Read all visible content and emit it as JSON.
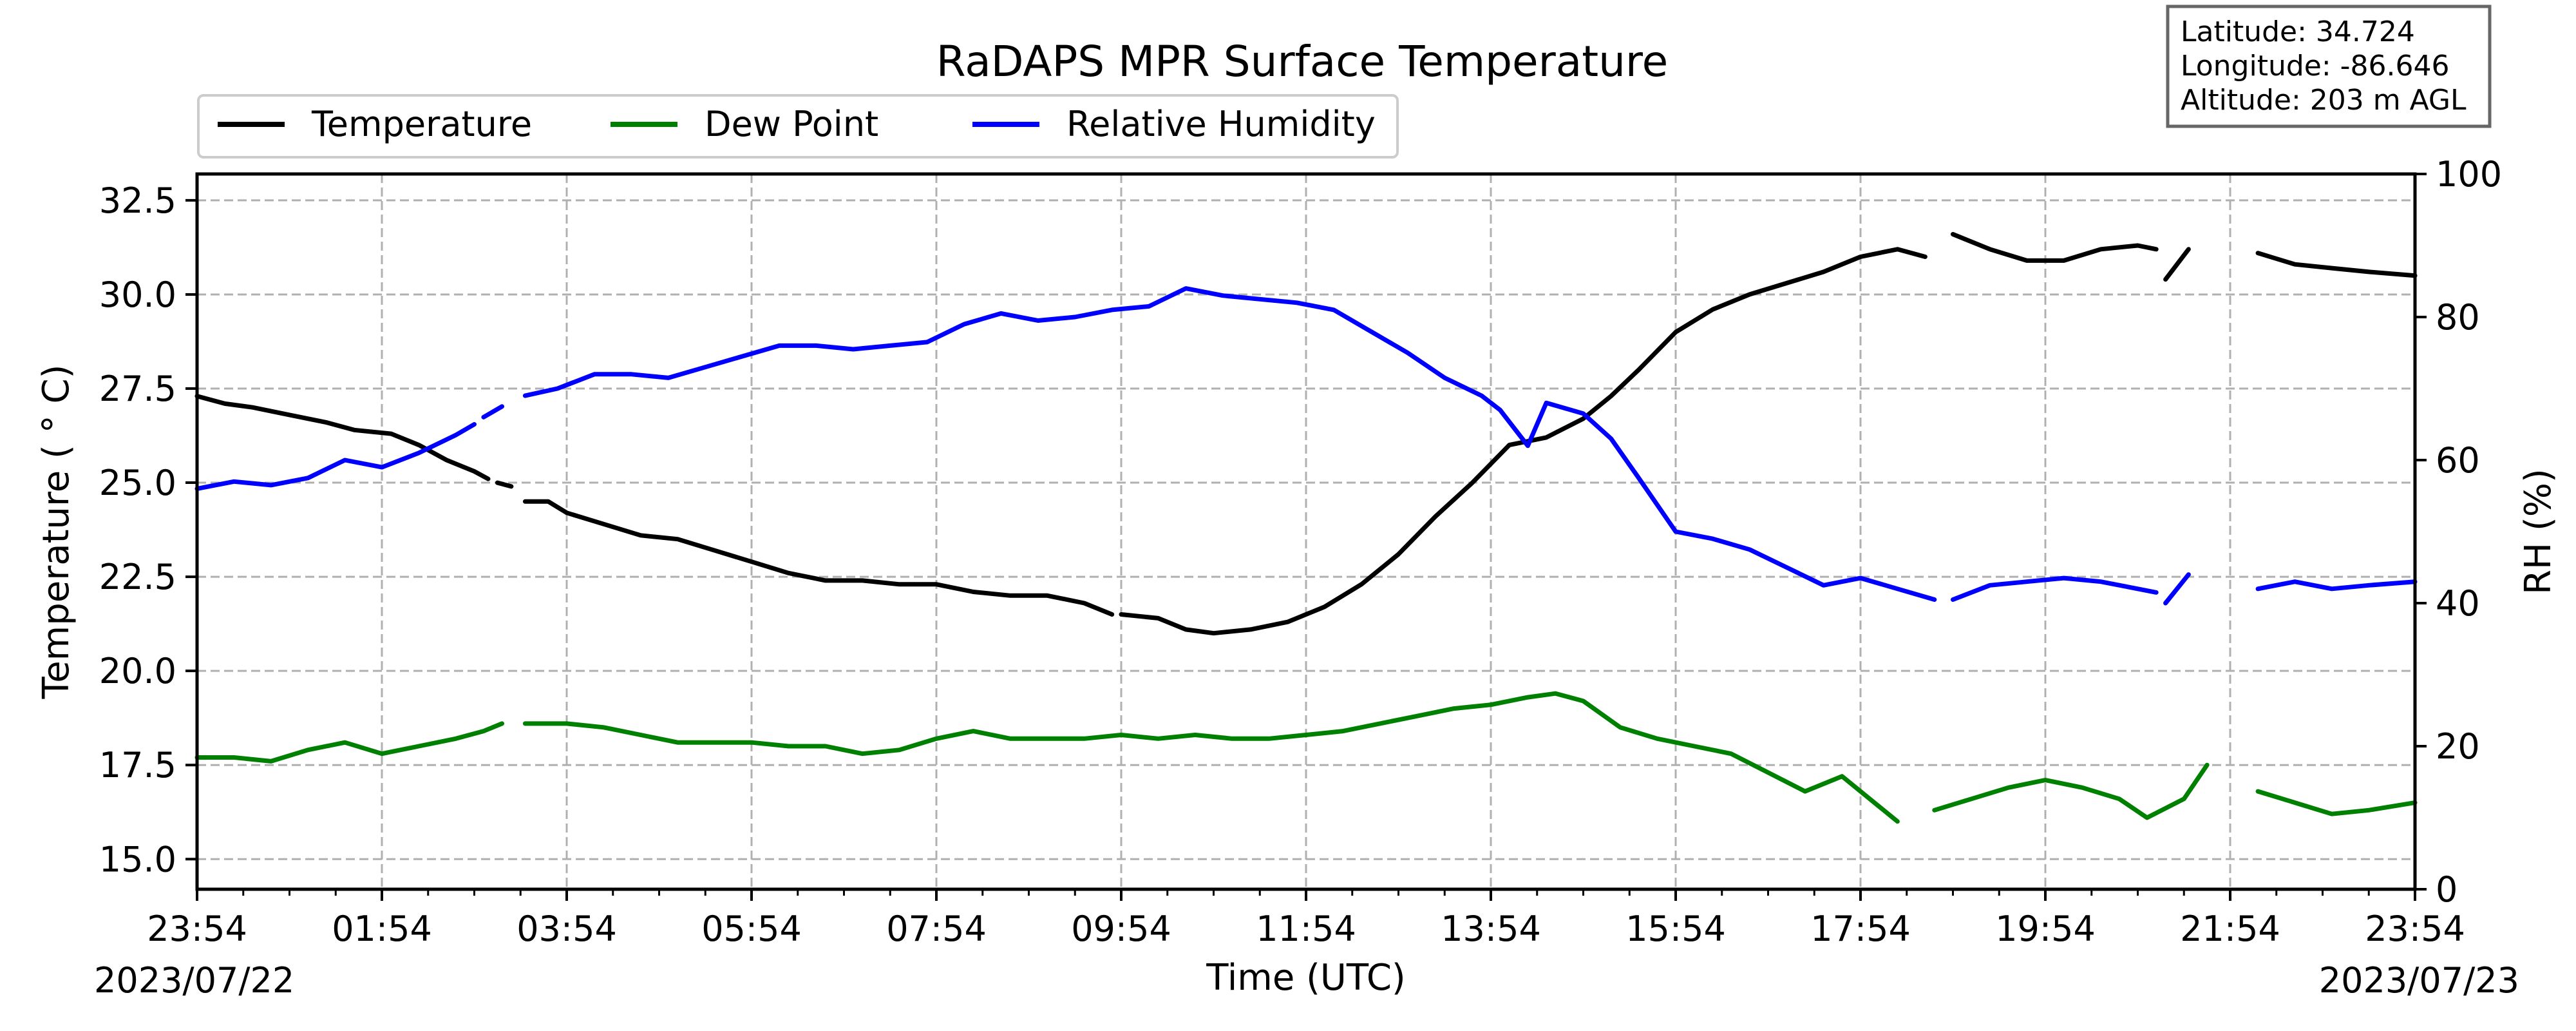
{
  "chart_data": {
    "type": "line",
    "title": "RaDAPS MPR Surface Temperature",
    "xlabel": "Time (UTC)",
    "ylabel_left": "Temperature ($^\\circ$C)",
    "ylabel_left_text": "Temperature ( ° C)",
    "ylabel_right": "RH (%)",
    "xlim_hours": [
      0,
      24
    ],
    "ylim_left": [
      14.2,
      33.2
    ],
    "ylim_right": [
      0,
      100
    ],
    "grid": true,
    "legend_position": "top-left, above plot",
    "x_ticks": [
      "23:54",
      "01:54",
      "03:54",
      "05:54",
      "07:54",
      "09:54",
      "11:54",
      "13:54",
      "15:54",
      "17:54",
      "19:54",
      "21:54",
      "23:54"
    ],
    "y_ticks_left": [
      "15.0",
      "17.5",
      "20.0",
      "22.5",
      "25.0",
      "27.5",
      "30.0",
      "32.5"
    ],
    "y_ticks_right": [
      "0",
      "20",
      "40",
      "60",
      "80",
      "100"
    ],
    "start_date": "2023/07/22",
    "end_date": "2023/07/23",
    "station": {
      "latitude": "Latitude: 34.724",
      "longitude": "Longitude: -86.646",
      "altitude": "Altitude: 203 m AGL"
    },
    "series": [
      {
        "name": "Temperature",
        "axis": "left",
        "color": "#000000",
        "segments": [
          [
            [
              0,
              27.3
            ],
            [
              0.3,
              27.1
            ],
            [
              0.6,
              27.0
            ],
            [
              1.0,
              26.8
            ],
            [
              1.4,
              26.6
            ],
            [
              1.7,
              26.4
            ],
            [
              2.1,
              26.3
            ],
            [
              2.4,
              26.0
            ],
            [
              2.7,
              25.6
            ],
            [
              3.0,
              25.3
            ],
            [
              3.15,
              25.1
            ]
          ],
          [
            [
              3.25,
              25.0
            ],
            [
              3.4,
              24.9
            ]
          ],
          [
            [
              3.55,
              24.5
            ],
            [
              3.8,
              24.5
            ],
            [
              4.0,
              24.2
            ],
            [
              4.4,
              23.9
            ],
            [
              4.8,
              23.6
            ],
            [
              5.2,
              23.5
            ],
            [
              5.6,
              23.2
            ],
            [
              6.0,
              22.9
            ],
            [
              6.4,
              22.6
            ],
            [
              6.8,
              22.4
            ],
            [
              7.2,
              22.4
            ],
            [
              7.6,
              22.3
            ],
            [
              8.0,
              22.3
            ],
            [
              8.4,
              22.1
            ],
            [
              8.8,
              22.0
            ],
            [
              9.2,
              22.0
            ],
            [
              9.6,
              21.8
            ],
            [
              9.9,
              21.5
            ]
          ],
          [
            [
              10.0,
              21.5
            ],
            [
              10.4,
              21.4
            ],
            [
              10.7,
              21.1
            ],
            [
              11.0,
              21.0
            ],
            [
              11.4,
              21.1
            ],
            [
              11.8,
              21.3
            ],
            [
              12.2,
              21.7
            ],
            [
              12.6,
              22.3
            ],
            [
              13.0,
              23.1
            ],
            [
              13.4,
              24.1
            ],
            [
              13.8,
              25.0
            ],
            [
              14.2,
              26.0
            ],
            [
              14.6,
              26.2
            ],
            [
              15.0,
              26.7
            ],
            [
              15.3,
              27.3
            ],
            [
              15.6,
              28.0
            ],
            [
              16.0,
              29.0
            ],
            [
              16.4,
              29.6
            ],
            [
              16.8,
              30.0
            ],
            [
              17.2,
              30.3
            ],
            [
              17.6,
              30.6
            ],
            [
              18.0,
              31.0
            ],
            [
              18.4,
              31.2
            ],
            [
              18.7,
              31.0
            ]
          ],
          [
            [
              19.0,
              31.6
            ],
            [
              19.4,
              31.2
            ],
            [
              19.8,
              30.9
            ],
            [
              20.2,
              30.9
            ],
            [
              20.6,
              31.2
            ],
            [
              21.0,
              31.3
            ],
            [
              21.2,
              31.2
            ]
          ],
          [
            [
              21.3,
              30.4
            ],
            [
              21.55,
              31.2
            ]
          ],
          [
            [
              22.3,
              31.1
            ],
            [
              22.7,
              30.8
            ],
            [
              23.1,
              30.7
            ],
            [
              23.5,
              30.6
            ],
            [
              24.0,
              30.5
            ]
          ]
        ]
      },
      {
        "name": "Dew Point",
        "axis": "left",
        "color": "#008000",
        "segments": [
          [
            [
              0,
              17.7
            ],
            [
              0.4,
              17.7
            ],
            [
              0.8,
              17.6
            ],
            [
              1.2,
              17.9
            ],
            [
              1.6,
              18.1
            ],
            [
              2.0,
              17.8
            ],
            [
              2.4,
              18.0
            ],
            [
              2.8,
              18.2
            ],
            [
              3.1,
              18.4
            ],
            [
              3.3,
              18.6
            ]
          ],
          [
            [
              3.55,
              18.6
            ],
            [
              4.0,
              18.6
            ],
            [
              4.4,
              18.5
            ],
            [
              4.8,
              18.3
            ],
            [
              5.2,
              18.1
            ],
            [
              5.6,
              18.1
            ],
            [
              6.0,
              18.1
            ],
            [
              6.4,
              18.0
            ],
            [
              6.8,
              18.0
            ],
            [
              7.2,
              17.8
            ],
            [
              7.6,
              17.9
            ],
            [
              8.0,
              18.2
            ],
            [
              8.4,
              18.4
            ],
            [
              8.8,
              18.2
            ],
            [
              9.2,
              18.2
            ],
            [
              9.6,
              18.2
            ],
            [
              10.0,
              18.3
            ],
            [
              10.4,
              18.2
            ],
            [
              10.8,
              18.3
            ],
            [
              11.2,
              18.2
            ],
            [
              11.6,
              18.2
            ],
            [
              12.0,
              18.3
            ],
            [
              12.4,
              18.4
            ],
            [
              12.8,
              18.6
            ],
            [
              13.2,
              18.8
            ],
            [
              13.6,
              19.0
            ],
            [
              14.0,
              19.1
            ],
            [
              14.4,
              19.3
            ],
            [
              14.7,
              19.4
            ],
            [
              15.0,
              19.2
            ],
            [
              15.4,
              18.5
            ],
            [
              15.8,
              18.2
            ],
            [
              16.2,
              18.0
            ],
            [
              16.6,
              17.8
            ],
            [
              17.0,
              17.3
            ],
            [
              17.4,
              16.8
            ],
            [
              17.8,
              17.2
            ],
            [
              18.2,
              16.4
            ],
            [
              18.4,
              16.0
            ]
          ],
          [
            [
              18.8,
              16.3
            ],
            [
              19.2,
              16.6
            ],
            [
              19.6,
              16.9
            ],
            [
              20.0,
              17.1
            ],
            [
              20.4,
              16.9
            ],
            [
              20.8,
              16.6
            ],
            [
              21.1,
              16.1
            ],
            [
              21.5,
              16.6
            ],
            [
              21.75,
              17.5
            ]
          ],
          [
            [
              22.3,
              16.8
            ],
            [
              22.7,
              16.5
            ],
            [
              23.1,
              16.2
            ],
            [
              23.5,
              16.3
            ],
            [
              24.0,
              16.5
            ]
          ]
        ]
      },
      {
        "name": "Relative Humidity",
        "axis": "right",
        "color": "#0000ff",
        "segments": [
          [
            [
              0,
              56
            ],
            [
              0.4,
              57
            ],
            [
              0.8,
              56.5
            ],
            [
              1.2,
              57.5
            ],
            [
              1.6,
              60
            ],
            [
              2.0,
              59
            ],
            [
              2.4,
              61
            ],
            [
              2.8,
              63.5
            ],
            [
              3.0,
              65
            ]
          ],
          [
            [
              3.1,
              66
            ],
            [
              3.3,
              67.5
            ]
          ],
          [
            [
              3.55,
              69
            ],
            [
              3.9,
              70
            ],
            [
              4.3,
              72
            ],
            [
              4.7,
              72
            ],
            [
              5.1,
              71.5
            ],
            [
              5.5,
              73
            ],
            [
              5.9,
              74.5
            ],
            [
              6.3,
              76
            ],
            [
              6.7,
              76
            ],
            [
              7.1,
              75.5
            ],
            [
              7.5,
              76
            ],
            [
              7.9,
              76.5
            ],
            [
              8.3,
              79
            ],
            [
              8.7,
              80.5
            ],
            [
              9.1,
              79.5
            ],
            [
              9.5,
              80
            ],
            [
              9.9,
              81
            ],
            [
              10.3,
              81.5
            ],
            [
              10.7,
              84
            ],
            [
              11.1,
              83
            ],
            [
              11.5,
              82.5
            ],
            [
              11.9,
              82
            ],
            [
              12.3,
              81
            ],
            [
              12.7,
              78
            ],
            [
              13.1,
              75
            ],
            [
              13.5,
              71.5
            ],
            [
              13.9,
              69
            ],
            [
              14.1,
              67
            ],
            [
              14.4,
              62
            ],
            [
              14.6,
              68
            ],
            [
              15.0,
              66.5
            ],
            [
              15.3,
              63
            ],
            [
              15.6,
              57.5
            ],
            [
              16.0,
              50
            ],
            [
              16.4,
              49
            ],
            [
              16.8,
              47.5
            ],
            [
              17.2,
              45
            ],
            [
              17.6,
              42.5
            ],
            [
              18.0,
              43.5
            ],
            [
              18.4,
              42
            ],
            [
              18.8,
              40.5
            ]
          ],
          [
            [
              19.0,
              40.5
            ],
            [
              19.4,
              42.5
            ],
            [
              19.8,
              43
            ],
            [
              20.2,
              43.5
            ],
            [
              20.6,
              43
            ],
            [
              21.0,
              42
            ],
            [
              21.2,
              41.5
            ]
          ],
          [
            [
              21.3,
              40
            ],
            [
              21.55,
              44
            ]
          ],
          [
            [
              22.3,
              42
            ],
            [
              22.7,
              43
            ],
            [
              23.1,
              42
            ],
            [
              23.5,
              42.5
            ],
            [
              24.0,
              43
            ]
          ]
        ]
      }
    ]
  }
}
